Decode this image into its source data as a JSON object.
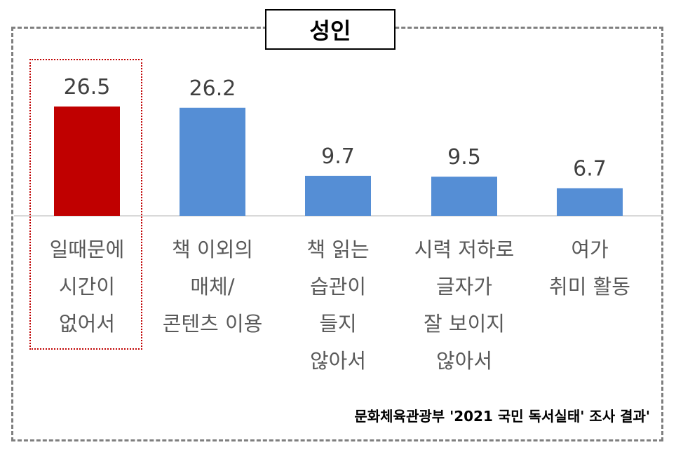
{
  "chart_data": {
    "type": "bar",
    "title": "성인",
    "categories": [
      "일때문에\n시간이\n없어서",
      "책 이외의\n매체/\n콘텐츠 이용",
      "책 읽는\n습관이\n들지\n않아서",
      "시력 저하로\n글자가\n잘 보이지\n않아서",
      "여가\n취미 활동"
    ],
    "values": [
      26.5,
      26.2,
      9.7,
      9.5,
      6.7
    ],
    "value_labels": [
      "26.5",
      "26.2",
      "9.7",
      "9.5",
      "6.7"
    ],
    "bar_colors": [
      "#c00000",
      "#558ed5",
      "#558ed5",
      "#558ed5",
      "#558ed5"
    ],
    "highlight_color": "#c00000",
    "ylim": [
      0,
      26.5
    ],
    "grid": false,
    "source": "문화체육관광부 '2021 국민 독서실태' 조사 결과'"
  }
}
